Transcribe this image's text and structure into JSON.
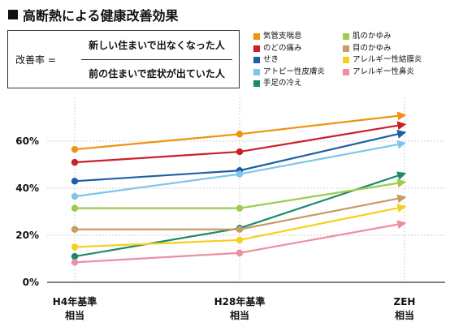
{
  "title": "高断熱による健康改善効果",
  "formula": {
    "lhs": "改善率 =",
    "numerator": "新しい住まいで出なくなった人",
    "denominator": "前の住まいで症状が出ていた人"
  },
  "chart_data": {
    "type": "line",
    "categories": [
      "H4年基準\n相当",
      "H28年基準\n相当",
      "ZEH\n相当"
    ],
    "yticks": [
      "0%",
      "20%",
      "40%",
      "60%"
    ],
    "ylim": [
      0,
      72
    ],
    "grid": true,
    "legend_position": "top-right",
    "series": [
      {
        "name": "気管支喘息",
        "color": "#f0930f",
        "values": [
          56.5,
          63,
          71
        ]
      },
      {
        "name": "のどの痛み",
        "color": "#c8202a",
        "values": [
          51,
          55.5,
          67
        ]
      },
      {
        "name": "せき",
        "color": "#1e5fa8",
        "values": [
          43,
          47.5,
          63.5
        ]
      },
      {
        "name": "アトピー性皮膚炎",
        "color": "#7ec6ea",
        "values": [
          36.5,
          46,
          59
        ]
      },
      {
        "name": "手足の冷え",
        "color": "#1b8a6b",
        "values": [
          11,
          23,
          46
        ]
      },
      {
        "name": "肌のかゆみ",
        "color": "#9ccc4c",
        "values": [
          31.5,
          31.5,
          42.5
        ]
      },
      {
        "name": "目のかゆみ",
        "color": "#c79a66",
        "values": [
          22.5,
          22.5,
          36
        ]
      },
      {
        "name": "アレルギー性結膜炎",
        "color": "#f7cf1b",
        "values": [
          15,
          18,
          32
        ]
      },
      {
        "name": "アレルギー性鼻炎",
        "color": "#ee8ea1",
        "values": [
          8.5,
          12.5,
          25
        ]
      }
    ]
  }
}
